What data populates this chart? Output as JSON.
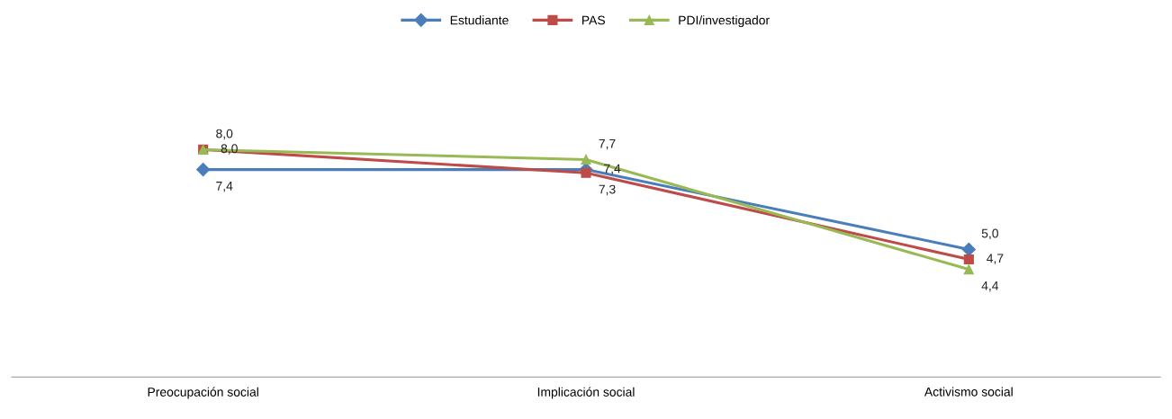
{
  "chart_data": {
    "type": "line",
    "categories": [
      "Preocupación social",
      "Implicación social",
      "Activismo social"
    ],
    "series": [
      {
        "name": "Estudiante",
        "color": "#4a7ebb",
        "marker": "diamond",
        "values": [
          7.4,
          7.4,
          5.0
        ],
        "value_labels": [
          "7,4",
          "7,4",
          "5,0"
        ]
      },
      {
        "name": "PAS",
        "color": "#be4b48",
        "marker": "square",
        "values": [
          8.0,
          7.3,
          4.7
        ],
        "value_labels": [
          "8,0",
          "7,3",
          "4,7"
        ]
      },
      {
        "name": "PDI/investigador",
        "color": "#98b954",
        "marker": "triangle",
        "values": [
          8.0,
          7.7,
          4.4
        ],
        "value_labels": [
          "8,0",
          "7,7",
          "4,4"
        ]
      }
    ],
    "tick_labels": "x",
    "legend": "top",
    "grid": false
  }
}
